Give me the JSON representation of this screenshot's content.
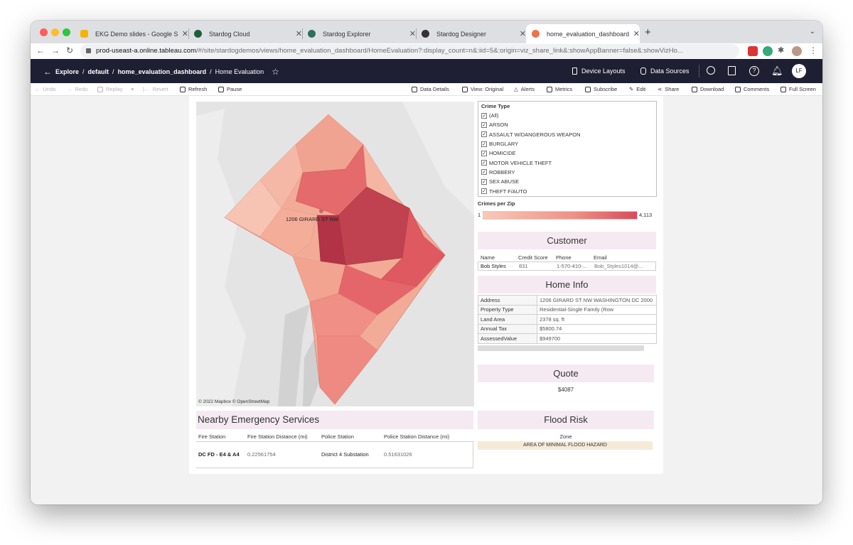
{
  "browser": {
    "tabs": [
      {
        "label": "EKG Demo slides - Google Slid",
        "icon": "google-slides-icon",
        "color": "#f4b400"
      },
      {
        "label": "Stardog Cloud",
        "icon": "stardog-icon",
        "color": "#1e5f3a"
      },
      {
        "label": "Stardog Explorer",
        "icon": "stardog-explorer-icon",
        "color": "#2f6f5b"
      },
      {
        "label": "Stardog Designer",
        "icon": "stardog-designer-icon",
        "color": "#333333"
      },
      {
        "label": "home_evaluation_dashboard: H",
        "icon": "tableau-icon",
        "color": "#e8764a"
      }
    ],
    "url_host": "prod-useast-a.online.tableau.com",
    "url_path": "/#/site/stardogdemos/views/home_evaluation_dashboard/HomeEvaluation?:display_count=n&:iid=5&:origin=viz_share_link&:showAppBanner=false&:showVizHo..."
  },
  "header": {
    "explore": "Explore",
    "default": "default",
    "workbook": "home_evaluation_dashboard",
    "view": "Home Evaluation",
    "device_layouts": "Device Layouts",
    "data_sources": "Data Sources",
    "avatar": "LF"
  },
  "toolbar": {
    "undo": "Undo",
    "redo": "Redo",
    "replay": "Replay",
    "revert": "Revert",
    "refresh": "Refresh",
    "pause": "Pause",
    "data_details": "Data Details",
    "view_original": "View: Original",
    "alerts": "Alerts",
    "metrics": "Metrics",
    "subscribe": "Subscribe",
    "edit": "Edit",
    "share": "Share",
    "download": "Download",
    "comments": "Comments",
    "full_screen": "Full Screen"
  },
  "map": {
    "attribution": "© 2022 Mapbox © OpenStreetMap",
    "label": "1206 GIRARD ST NW"
  },
  "filter": {
    "title": "Crime Type",
    "items": [
      "(All)",
      "ARSON",
      "ASSAULT W/DANGEROUS WEAPON",
      "BURGLARY",
      "HOMICIDE",
      "MOTOR VEHICLE THEFT",
      "ROBBERY",
      "SEX ABUSE",
      "THEFT F/AUTO"
    ]
  },
  "legend": {
    "title": "Crimes per Zip",
    "min": "1",
    "max": "4,113"
  },
  "customer": {
    "title": "Customer",
    "headers": [
      "Name",
      "Credit Score",
      "Phone",
      "Email"
    ],
    "values": [
      "Bob Styles",
      "831",
      "1-570-410-...",
      "Bob_Styles1014@..."
    ]
  },
  "home_info": {
    "title": "Home Info",
    "rows": [
      {
        "k": "Address",
        "v": "1206 GIRARD ST NW WASHINGTON DC 2000"
      },
      {
        "k": "Property Type",
        "v": "Residential-Single Family (Row"
      },
      {
        "k": "Land Area",
        "v": "2378 sq. ft"
      },
      {
        "k": "Annual Tax",
        "v": "$5800.74"
      },
      {
        "k": "AssessedValue",
        "v": "$949700"
      }
    ]
  },
  "quote": {
    "title": "Quote",
    "value": "$4087"
  },
  "emergency": {
    "title": "Nearby Emergency Services",
    "headers": [
      "Fire Station",
      "Fire Station Distance (mi)",
      "Police Station",
      "Police Station Distance (mi)"
    ],
    "values": [
      "DC FD - E4 & A4",
      "0.22561754",
      "District 4 Substation",
      "0.51631026"
    ]
  },
  "flood": {
    "title": "Flood Risk",
    "zone_label": "Zone",
    "zone_value": "AREA OF MINIMAL FLOOD HAZARD"
  }
}
